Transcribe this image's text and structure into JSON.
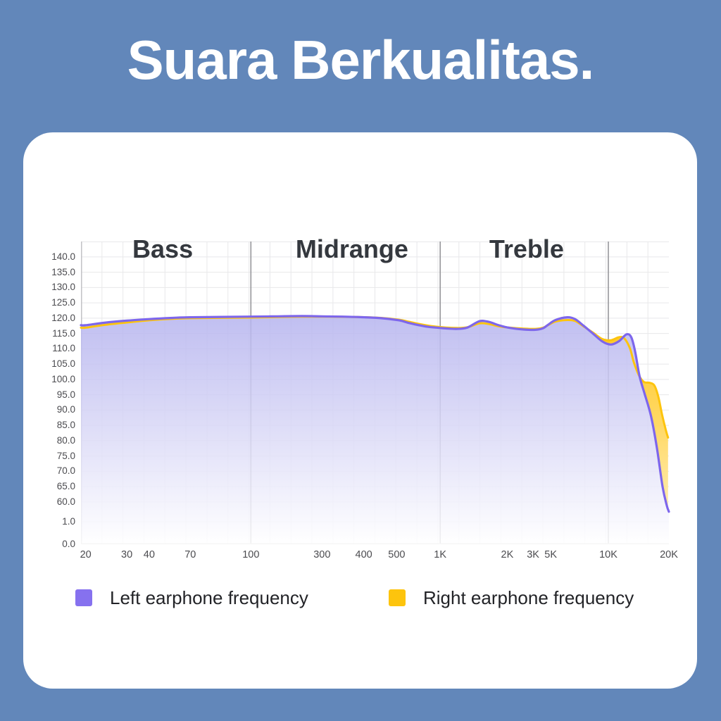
{
  "page": {
    "title": "Suara Berkualitas.",
    "background_color": "#6287ba",
    "title_color": "#ffffff",
    "card_color": "#ffffff"
  },
  "chart_data": {
    "type": "area",
    "title": "Suara Berkualitas.",
    "xlabel": "",
    "ylabel": "",
    "x_axis": {
      "scale": "log-stylized",
      "ticks": [
        {
          "label": "20",
          "f": 20,
          "p": 0.008
        },
        {
          "label": "30",
          "f": 30,
          "p": 0.078
        },
        {
          "label": "40",
          "f": 40,
          "p": 0.116
        },
        {
          "label": "70",
          "f": 70,
          "p": 0.186
        },
        {
          "label": "100",
          "f": 100,
          "p": 0.289
        },
        {
          "label": "300",
          "f": 300,
          "p": 0.41
        },
        {
          "label": "400",
          "f": 400,
          "p": 0.481
        },
        {
          "label": "500",
          "f": 500,
          "p": 0.537
        },
        {
          "label": "1K",
          "f": 1000,
          "p": 0.611
        },
        {
          "label": "2K",
          "f": 2000,
          "p": 0.725
        },
        {
          "label": "3K",
          "f": 3000,
          "p": 0.769
        },
        {
          "label": "5K",
          "f": 5000,
          "p": 0.799
        },
        {
          "label": "10K",
          "f": 10000,
          "p": 0.897
        },
        {
          "label": "20K",
          "f": 20000,
          "p": 1.0
        }
      ]
    },
    "y_axis": {
      "broken_scale": true,
      "anchors": [
        {
          "v": 140,
          "p": 0.051
        },
        {
          "v": 60,
          "p": 0.86
        },
        {
          "v": 1,
          "p": 0.926
        },
        {
          "v": 0,
          "p": 1.0
        }
      ],
      "ticks": [
        {
          "label": "140.0",
          "v": 140
        },
        {
          "label": "135.0",
          "v": 135
        },
        {
          "label": "130.0",
          "v": 130
        },
        {
          "label": "125.0",
          "v": 125
        },
        {
          "label": "120.0",
          "v": 120
        },
        {
          "label": "115.0",
          "v": 115
        },
        {
          "label": "110.0",
          "v": 110
        },
        {
          "label": "105.0",
          "v": 105
        },
        {
          "label": "100.0",
          "v": 100
        },
        {
          "label": "95.0",
          "v": 95
        },
        {
          "label": "90.0",
          "v": 90
        },
        {
          "label": "85.0",
          "v": 85
        },
        {
          "label": "80.0",
          "v": 80
        },
        {
          "label": "75.0",
          "v": 75
        },
        {
          "label": "70.0",
          "v": 70
        },
        {
          "label": "65.0",
          "v": 65
        },
        {
          "label": "60.0",
          "v": 60
        },
        {
          "label": "1.0",
          "v": 1
        },
        {
          "label": "0.0",
          "v": 0
        }
      ]
    },
    "regions": {
      "labels": [
        {
          "label": "Bass",
          "p": 0.139
        },
        {
          "label": "Midrange",
          "p": 0.461
        },
        {
          "label": "Treble",
          "p": 0.758
        }
      ],
      "boundaries_f": [
        100,
        1000,
        10000
      ]
    },
    "series": [
      {
        "name": "Left earphone frequency",
        "color": "#7d66ec",
        "fill_top": "#b3b1ee",
        "points": [
          [
            20,
            117.7
          ],
          [
            24,
            118.5
          ],
          [
            30,
            119.2
          ],
          [
            40,
            119.7
          ],
          [
            55,
            120.1
          ],
          [
            70,
            120.3
          ],
          [
            100,
            120.5
          ],
          [
            150,
            120.6
          ],
          [
            220,
            120.7
          ],
          [
            300,
            120.6
          ],
          [
            380,
            120.4
          ],
          [
            450,
            120.0
          ],
          [
            520,
            119.3
          ],
          [
            600,
            118.5
          ],
          [
            700,
            117.8
          ],
          [
            820,
            117.2
          ],
          [
            1000,
            116.8
          ],
          [
            1180,
            116.5
          ],
          [
            1320,
            116.9
          ],
          [
            1500,
            119.0
          ],
          [
            1650,
            118.8
          ],
          [
            1850,
            117.6
          ],
          [
            2100,
            116.8
          ],
          [
            2600,
            116.3
          ],
          [
            3200,
            116.2
          ],
          [
            4000,
            116.7
          ],
          [
            4600,
            117.8
          ],
          [
            5300,
            119.4
          ],
          [
            6100,
            120.3
          ],
          [
            6700,
            119.7
          ],
          [
            7400,
            117.6
          ],
          [
            8300,
            115.0
          ],
          [
            9300,
            112.4
          ],
          [
            10300,
            111.4
          ],
          [
            11300,
            112.5
          ],
          [
            12300,
            114.7
          ],
          [
            13000,
            113.8
          ],
          [
            13600,
            109.0
          ],
          [
            14300,
            101.0
          ],
          [
            15200,
            95.0
          ],
          [
            16300,
            88.0
          ],
          [
            17400,
            78.0
          ],
          [
            18600,
            65.0
          ],
          [
            19500,
            50.0
          ],
          [
            20000,
            31.0
          ]
        ]
      },
      {
        "name": "Right earphone frequency",
        "color": "#fdc40d",
        "fill_top": "#ffc20e",
        "points": [
          [
            20,
            116.9
          ],
          [
            24,
            117.8
          ],
          [
            30,
            118.6
          ],
          [
            40,
            119.3
          ],
          [
            55,
            119.8
          ],
          [
            70,
            120.0
          ],
          [
            100,
            120.2
          ],
          [
            150,
            120.4
          ],
          [
            220,
            120.5
          ],
          [
            300,
            120.5
          ],
          [
            380,
            120.4
          ],
          [
            450,
            120.1
          ],
          [
            520,
            119.5
          ],
          [
            600,
            118.9
          ],
          [
            700,
            118.2
          ],
          [
            820,
            117.6
          ],
          [
            1000,
            117.1
          ],
          [
            1180,
            116.8
          ],
          [
            1320,
            117.0
          ],
          [
            1500,
            118.3
          ],
          [
            1650,
            118.1
          ],
          [
            1850,
            117.3
          ],
          [
            2100,
            116.9
          ],
          [
            2600,
            116.6
          ],
          [
            3200,
            116.5
          ],
          [
            4000,
            116.9
          ],
          [
            4600,
            117.7
          ],
          [
            5300,
            118.9
          ],
          [
            6100,
            119.4
          ],
          [
            6700,
            119.1
          ],
          [
            7400,
            117.4
          ],
          [
            8300,
            115.3
          ],
          [
            9300,
            113.2
          ],
          [
            10300,
            112.8
          ],
          [
            11300,
            113.8
          ],
          [
            12000,
            113.4
          ],
          [
            12800,
            110.2
          ],
          [
            13400,
            105.5
          ],
          [
            14200,
            101.3
          ],
          [
            15000,
            99.2
          ],
          [
            16000,
            98.9
          ],
          [
            16900,
            98.1
          ],
          [
            17700,
            94.5
          ],
          [
            18500,
            88.5
          ],
          [
            19300,
            83.5
          ],
          [
            19800,
            81.0
          ]
        ]
      }
    ],
    "legend": [
      {
        "label": "Left earphone frequency",
        "color": "#8671ef"
      },
      {
        "label": "Right earphone frequency",
        "color": "#fdc40d"
      }
    ],
    "style": {
      "grid_color": "#e8e8ea",
      "divider_color": "#97979b",
      "axis_color": "#c2c2c6",
      "tick_text_color": "#4b4b4f",
      "region_text_color": "#34383e",
      "legend_text_color": "#222327"
    }
  }
}
